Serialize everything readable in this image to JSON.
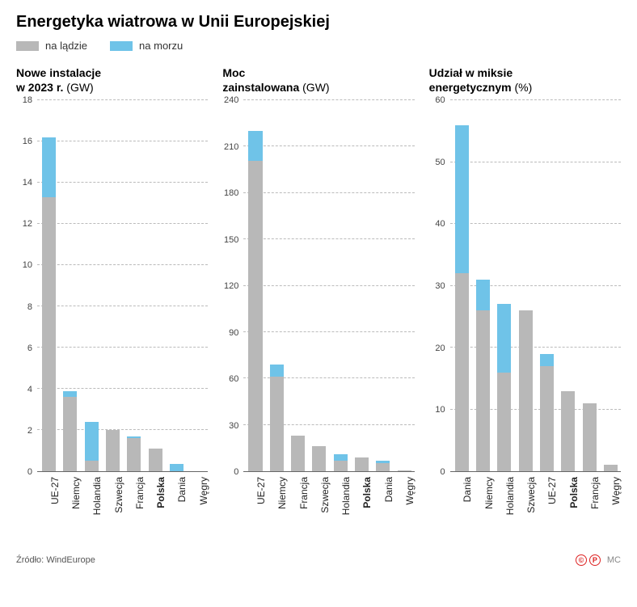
{
  "title": "Energetyka wiatrowa w Unii Europejskiej",
  "legend": {
    "onshore": {
      "label": "na lądzie",
      "color": "#b8b8b8"
    },
    "offshore": {
      "label": "na morzu",
      "color": "#6fc3e8"
    }
  },
  "colors": {
    "background": "#ffffff",
    "grid": "#bbbbbb",
    "axis": "#666666",
    "text": "#222222",
    "onshore": "#b8b8b8",
    "offshore": "#6fc3e8"
  },
  "footer": {
    "source_label": "Źródło:",
    "source_value": "WindEurope",
    "brand_letters": [
      "©",
      "P"
    ],
    "signature": "MC"
  },
  "chart1": {
    "title_line1": "Nowe instalacje",
    "title_line2": "w 2023 r.",
    "unit": "(GW)",
    "type": "stacked-bar",
    "ylim": [
      0,
      18
    ],
    "ytick_step": 2,
    "categories": [
      "UE-27",
      "Niemcy",
      "Holandia",
      "Szwecja",
      "Francja",
      "Polska",
      "Dania",
      "Węgry"
    ],
    "bold_categories": [
      "Polska"
    ],
    "onshore": [
      13.3,
      3.6,
      0.5,
      2.0,
      1.6,
      1.1,
      0.0,
      0.0
    ],
    "offshore": [
      2.9,
      0.3,
      1.9,
      0.0,
      0.1,
      0.0,
      0.35,
      0.0
    ]
  },
  "chart2": {
    "title_line1": "Moc",
    "title_line2": "zainstalowana",
    "unit": "(GW)",
    "type": "stacked-bar",
    "ylim": [
      0,
      240
    ],
    "ytick_step": 30,
    "categories": [
      "UE-27",
      "Niemcy",
      "Francja",
      "Szwecja",
      "Holandia",
      "Polska",
      "Dania",
      "Węgry"
    ],
    "bold_categories": [
      "Polska"
    ],
    "onshore": [
      201,
      61,
      23,
      16,
      7,
      9,
      5,
      0.5
    ],
    "offshore": [
      19,
      8,
      0,
      0,
      4,
      0,
      2,
      0.0
    ]
  },
  "chart3": {
    "title_line1": "Udział w miksie",
    "title_line2": "energetycznym",
    "unit": "(%)",
    "type": "stacked-bar",
    "ylim": [
      0,
      60
    ],
    "ytick_step": 10,
    "categories": [
      "Dania",
      "Niemcy",
      "Holandia",
      "Szwecja",
      "UE-27",
      "Polska",
      "Francja",
      "Węgry"
    ],
    "bold_categories": [
      "Polska"
    ],
    "onshore": [
      32,
      26,
      16,
      26,
      17,
      13,
      11,
      1
    ],
    "offshore": [
      24,
      5,
      11,
      0,
      2,
      0,
      0,
      0
    ]
  }
}
